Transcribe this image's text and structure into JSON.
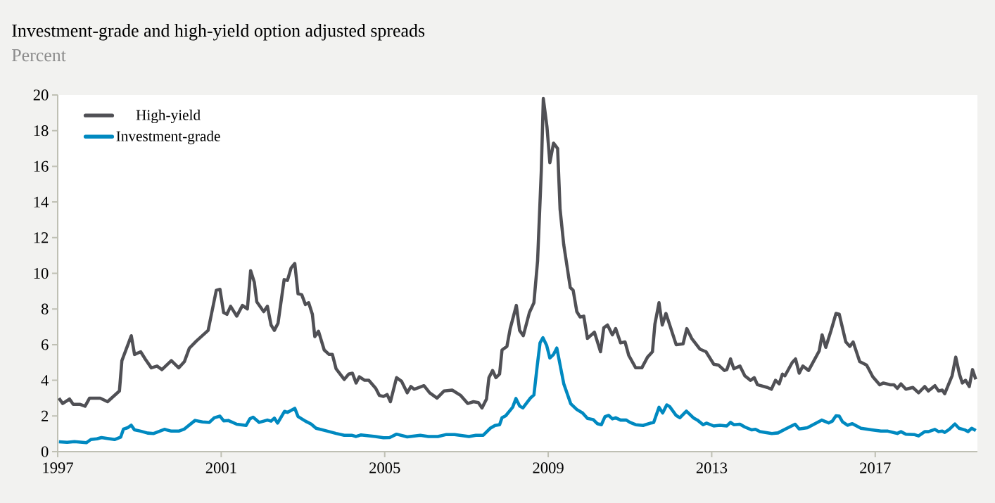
{
  "chart_data": {
    "type": "line",
    "title": "Investment-grade and high-yield option adjusted spreads",
    "subtitle": "Percent",
    "xlim": [
      1997,
      2019.5
    ],
    "xticks": [
      1997,
      2001,
      2005,
      2009,
      2013,
      2017
    ],
    "ylim": [
      0,
      20
    ],
    "yticks": [
      0,
      2,
      4,
      6,
      8,
      10,
      12,
      14,
      16,
      18,
      20
    ],
    "legend": "top left",
    "marker": "none",
    "line_style": "solid",
    "series": [
      {
        "name": "High-yield",
        "color": "#505055",
        "x": [
          1997.03,
          1997.12,
          1997.29,
          1997.38,
          1997.55,
          1997.67,
          1997.78,
          1998.04,
          1998.22,
          1998.51,
          1998.57,
          1998.8,
          1998.88,
          1999.03,
          1999.14,
          1999.29,
          1999.43,
          1999.55,
          1999.78,
          1999.96,
          2000.1,
          2000.22,
          2000.39,
          2000.68,
          2000.88,
          2000.97,
          2001.06,
          2001.14,
          2001.23,
          2001.38,
          2001.52,
          2001.64,
          2001.72,
          2001.81,
          2001.87,
          2002.04,
          2002.13,
          2002.22,
          2002.3,
          2002.39,
          2002.54,
          2002.62,
          2002.71,
          2002.8,
          2002.88,
          2002.97,
          2003.06,
          2003.14,
          2003.23,
          2003.29,
          2003.38,
          2003.52,
          2003.64,
          2003.72,
          2003.81,
          2004.01,
          2004.12,
          2004.21,
          2004.3,
          2004.38,
          2004.51,
          2004.61,
          2004.78,
          2004.87,
          2004.97,
          2005.06,
          2005.14,
          2005.29,
          2005.41,
          2005.55,
          2005.64,
          2005.72,
          2005.96,
          2006.1,
          2006.28,
          2006.45,
          2006.65,
          2006.86,
          2007.03,
          2007.17,
          2007.29,
          2007.38,
          2007.49,
          2007.55,
          2007.64,
          2007.72,
          2007.81,
          2007.87,
          2007.99,
          2008.07,
          2008.22,
          2008.3,
          2008.39,
          2008.54,
          2008.65,
          2008.74,
          2008.83,
          2008.88,
          2008.97,
          2009.04,
          2009.13,
          2009.23,
          2009.29,
          2009.38,
          2009.54,
          2009.61,
          2009.7,
          2009.78,
          2009.87,
          2009.96,
          2010.13,
          2010.28,
          2010.36,
          2010.45,
          2010.57,
          2010.65,
          2010.77,
          2010.88,
          2010.97,
          2011.14,
          2011.29,
          2011.43,
          2011.55,
          2011.61,
          2011.71,
          2011.79,
          2011.88,
          2012.13,
          2012.3,
          2012.39,
          2012.51,
          2012.71,
          2012.86,
          2013.05,
          2013.17,
          2013.31,
          2013.37,
          2013.46,
          2013.54,
          2013.69,
          2013.81,
          2013.95,
          2014.04,
          2014.12,
          2014.36,
          2014.46,
          2014.56,
          2014.65,
          2014.73,
          2014.79,
          2014.97,
          2015.05,
          2015.14,
          2015.23,
          2015.37,
          2015.63,
          2015.7,
          2015.79,
          2015.92,
          2016.04,
          2016.12,
          2016.28,
          2016.38,
          2016.46,
          2016.62,
          2016.79,
          2016.94,
          2017.11,
          2017.2,
          2017.37,
          2017.46,
          2017.54,
          2017.63,
          2017.75,
          2017.92,
          2018.06,
          2018.21,
          2018.3,
          2018.46,
          2018.55,
          2018.64,
          2018.7,
          2018.88,
          2018.97,
          2019.06,
          2019.13,
          2019.21,
          2019.3,
          2019.38,
          2019.46
        ],
        "values": [
          3.0,
          2.7,
          2.95,
          2.65,
          2.65,
          2.55,
          3.0,
          3.0,
          2.8,
          3.4,
          5.1,
          6.5,
          5.45,
          5.6,
          5.2,
          4.7,
          4.8,
          4.6,
          5.1,
          4.7,
          5.05,
          5.8,
          6.2,
          6.8,
          9.05,
          9.1,
          7.8,
          7.7,
          8.15,
          7.6,
          8.2,
          8.0,
          10.15,
          9.5,
          8.4,
          7.85,
          8.15,
          7.1,
          6.8,
          7.2,
          9.65,
          9.6,
          10.3,
          10.55,
          8.85,
          8.8,
          8.25,
          8.35,
          7.7,
          6.45,
          6.75,
          5.7,
          5.45,
          5.45,
          4.65,
          4.05,
          4.35,
          4.4,
          3.85,
          4.2,
          4.0,
          4.0,
          3.55,
          3.15,
          3.1,
          3.2,
          2.8,
          4.15,
          3.95,
          3.3,
          3.65,
          3.5,
          3.7,
          3.3,
          3.0,
          3.4,
          3.45,
          3.15,
          2.7,
          2.8,
          2.75,
          2.45,
          2.95,
          4.15,
          4.55,
          4.15,
          4.35,
          5.7,
          5.9,
          6.9,
          8.2,
          6.8,
          6.5,
          7.8,
          8.35,
          10.7,
          15.7,
          19.8,
          18.2,
          16.2,
          17.3,
          17.0,
          13.6,
          11.6,
          9.2,
          9.05,
          7.85,
          7.55,
          7.6,
          6.35,
          6.7,
          5.6,
          6.95,
          7.1,
          6.55,
          6.9,
          6.1,
          6.15,
          5.4,
          4.7,
          4.7,
          5.3,
          5.6,
          7.15,
          8.35,
          7.1,
          7.75,
          6.0,
          6.05,
          6.9,
          6.35,
          5.75,
          5.6,
          4.9,
          4.85,
          4.55,
          4.6,
          5.2,
          4.65,
          4.8,
          4.25,
          4.0,
          4.15,
          3.75,
          3.6,
          3.5,
          4.0,
          3.8,
          4.35,
          4.25,
          5.0,
          5.2,
          4.4,
          4.8,
          4.55,
          5.65,
          6.55,
          5.85,
          6.8,
          7.75,
          7.7,
          6.15,
          5.9,
          6.15,
          5.05,
          4.85,
          4.2,
          3.75,
          3.85,
          3.75,
          3.75,
          3.55,
          3.8,
          3.5,
          3.6,
          3.3,
          3.65,
          3.4,
          3.7,
          3.4,
          3.45,
          3.25,
          4.25,
          5.3,
          4.35,
          3.85,
          4.0,
          3.65,
          4.6,
          4.05
        ]
      },
      {
        "name": "Investment-grade",
        "color": "#0089c0",
        "x": [
          1997.03,
          1997.23,
          1997.41,
          1997.7,
          1997.81,
          1997.96,
          1998.07,
          1998.39,
          1998.54,
          1998.61,
          1998.71,
          1998.8,
          1998.88,
          1999.03,
          1999.2,
          1999.35,
          1999.61,
          1999.78,
          1999.96,
          2000.1,
          2000.36,
          2000.54,
          2000.71,
          2000.83,
          2000.97,
          2001.06,
          2001.17,
          2001.38,
          2001.61,
          2001.7,
          2001.78,
          2001.93,
          2002.13,
          2002.22,
          2002.3,
          2002.38,
          2002.55,
          2002.62,
          2002.8,
          2002.88,
          2003.06,
          2003.2,
          2003.32,
          2003.55,
          2003.81,
          2004.01,
          2004.19,
          2004.3,
          2004.42,
          2004.77,
          2004.97,
          2005.12,
          2005.29,
          2005.55,
          2005.87,
          2006.07,
          2006.3,
          2006.51,
          2006.71,
          2007.06,
          2007.23,
          2007.41,
          2007.58,
          2007.7,
          2007.81,
          2007.87,
          2007.96,
          2008.13,
          2008.21,
          2008.3,
          2008.38,
          2008.57,
          2008.65,
          2008.73,
          2008.8,
          2008.87,
          2008.96,
          2009.04,
          2009.13,
          2009.21,
          2009.38,
          2009.55,
          2009.7,
          2009.84,
          2009.96,
          2010.1,
          2010.2,
          2010.3,
          2010.39,
          2010.48,
          2010.57,
          2010.65,
          2010.77,
          2010.91,
          2011.0,
          2011.14,
          2011.32,
          2011.52,
          2011.58,
          2011.71,
          2011.8,
          2011.9,
          2011.97,
          2012.13,
          2012.22,
          2012.38,
          2012.56,
          2012.65,
          2012.79,
          2012.87,
          2013.05,
          2013.2,
          2013.37,
          2013.46,
          2013.54,
          2013.69,
          2013.81,
          2013.98,
          2014.07,
          2014.18,
          2014.47,
          2014.62,
          2014.79,
          2015.04,
          2015.14,
          2015.34,
          2015.69,
          2015.86,
          2015.95,
          2016.04,
          2016.12,
          2016.2,
          2016.32,
          2016.44,
          2016.65,
          2016.91,
          2017.14,
          2017.31,
          2017.54,
          2017.63,
          2017.75,
          2017.95,
          2018.06,
          2018.21,
          2018.3,
          2018.46,
          2018.55,
          2018.64,
          2018.7,
          2018.81,
          2018.95,
          2019.05,
          2019.19,
          2019.27,
          2019.36,
          2019.46
        ],
        "values": [
          0.55,
          0.52,
          0.56,
          0.5,
          0.68,
          0.72,
          0.79,
          0.68,
          0.81,
          1.27,
          1.34,
          1.48,
          1.22,
          1.15,
          1.04,
          1.02,
          1.25,
          1.15,
          1.15,
          1.27,
          1.75,
          1.67,
          1.64,
          1.9,
          1.99,
          1.73,
          1.75,
          1.54,
          1.47,
          1.84,
          1.93,
          1.64,
          1.77,
          1.71,
          1.88,
          1.6,
          2.26,
          2.2,
          2.43,
          1.97,
          1.71,
          1.55,
          1.31,
          1.18,
          1.02,
          0.92,
          0.92,
          0.85,
          0.94,
          0.85,
          0.78,
          0.79,
          0.98,
          0.83,
          0.92,
          0.85,
          0.85,
          0.96,
          0.96,
          0.85,
          0.92,
          0.92,
          1.31,
          1.47,
          1.51,
          1.9,
          2.01,
          2.49,
          2.98,
          2.56,
          2.45,
          3.02,
          3.18,
          4.79,
          6.1,
          6.39,
          5.97,
          5.25,
          5.45,
          5.81,
          3.81,
          2.69,
          2.36,
          2.17,
          1.86,
          1.8,
          1.57,
          1.51,
          1.97,
          2.03,
          1.84,
          1.9,
          1.77,
          1.77,
          1.64,
          1.51,
          1.47,
          1.61,
          1.64,
          2.49,
          2.17,
          2.62,
          2.53,
          2.03,
          1.9,
          2.27,
          1.88,
          1.77,
          1.51,
          1.6,
          1.44,
          1.48,
          1.44,
          1.64,
          1.51,
          1.54,
          1.38,
          1.22,
          1.25,
          1.12,
          1.02,
          1.05,
          1.25,
          1.54,
          1.27,
          1.34,
          1.77,
          1.61,
          1.71,
          2.01,
          1.99,
          1.67,
          1.48,
          1.57,
          1.31,
          1.22,
          1.15,
          1.15,
          1.02,
          1.12,
          0.98,
          0.96,
          0.88,
          1.12,
          1.12,
          1.25,
          1.12,
          1.15,
          1.08,
          1.25,
          1.55,
          1.31,
          1.22,
          1.12,
          1.31,
          1.18
        ]
      }
    ]
  }
}
